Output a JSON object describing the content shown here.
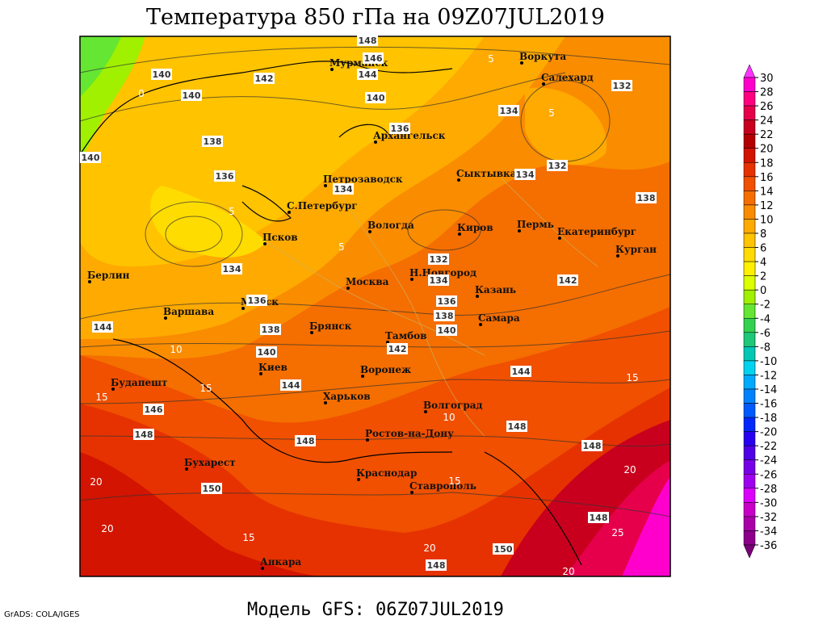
{
  "header": {
    "title": "Температура 850 гПа на 09Z07JUL2019"
  },
  "footer": {
    "model": "Модель GFS: 06Z07JUL2019",
    "credit": "GrADS: COLA/IGES"
  },
  "colorbar": {
    "levels": [
      30,
      28,
      26,
      24,
      22,
      20,
      18,
      16,
      14,
      12,
      10,
      8,
      6,
      4,
      2,
      0,
      -2,
      -4,
      -6,
      -8,
      -10,
      -12,
      -14,
      -16,
      -18,
      -20,
      -22,
      -24,
      -26,
      -28,
      -30,
      -32,
      -34,
      -36
    ],
    "colors": [
      "#ff33ff",
      "#ff00cc",
      "#ff0080",
      "#e6004c",
      "#c8001e",
      "#b40000",
      "#d21400",
      "#e63200",
      "#f05000",
      "#f56e00",
      "#fa8c00",
      "#ffaa00",
      "#ffc300",
      "#ffdc00",
      "#fff000",
      "#dcff00",
      "#a0f000",
      "#64e632",
      "#32d250",
      "#1ec878",
      "#00c8b4",
      "#00d2f0",
      "#00aaff",
      "#0082ff",
      "#005aff",
      "#0028ff",
      "#2800f0",
      "#5000e6",
      "#7800e6",
      "#a000f0",
      "#dc00ff",
      "#c800c8",
      "#aa00aa",
      "#8c008c",
      "#780078"
    ]
  },
  "cities": [
    "Мурманск",
    "Воркута",
    "Салехард",
    "Архангельск",
    "Петрозаводск",
    "Сыктывкар",
    "С.Петербург",
    "Вологда",
    "Киров",
    "Пермь",
    "Екатеринбург",
    "Курган",
    "Псков",
    "Берлин",
    "Н.Новгород",
    "Москва",
    "Казань",
    "Минск",
    "Варшава",
    "Самара",
    "Брянск",
    "Тамбов",
    "Киев",
    "Воронеж",
    "Будапешт",
    "Харьков",
    "Волгоград",
    "Ростов-на-Дону",
    "Бухарест",
    "Краснодар",
    "Ставрополь",
    "Анкара"
  ],
  "height_labels": [
    148,
    146,
    144,
    140,
    140,
    142,
    140,
    136,
    134,
    132,
    138,
    132,
    134,
    136,
    134,
    138,
    140,
    134,
    132,
    134,
    142,
    136,
    136,
    138,
    140,
    138,
    142,
    144,
    140,
    144,
    144,
    146,
    148,
    148,
    148,
    148,
    150,
    148,
    150,
    148
  ],
  "temperature_labels": [
    0,
    5,
    5,
    5,
    5,
    10,
    15,
    15,
    15,
    10,
    20,
    20,
    20,
    15,
    25,
    15,
    20,
    20
  ]
}
